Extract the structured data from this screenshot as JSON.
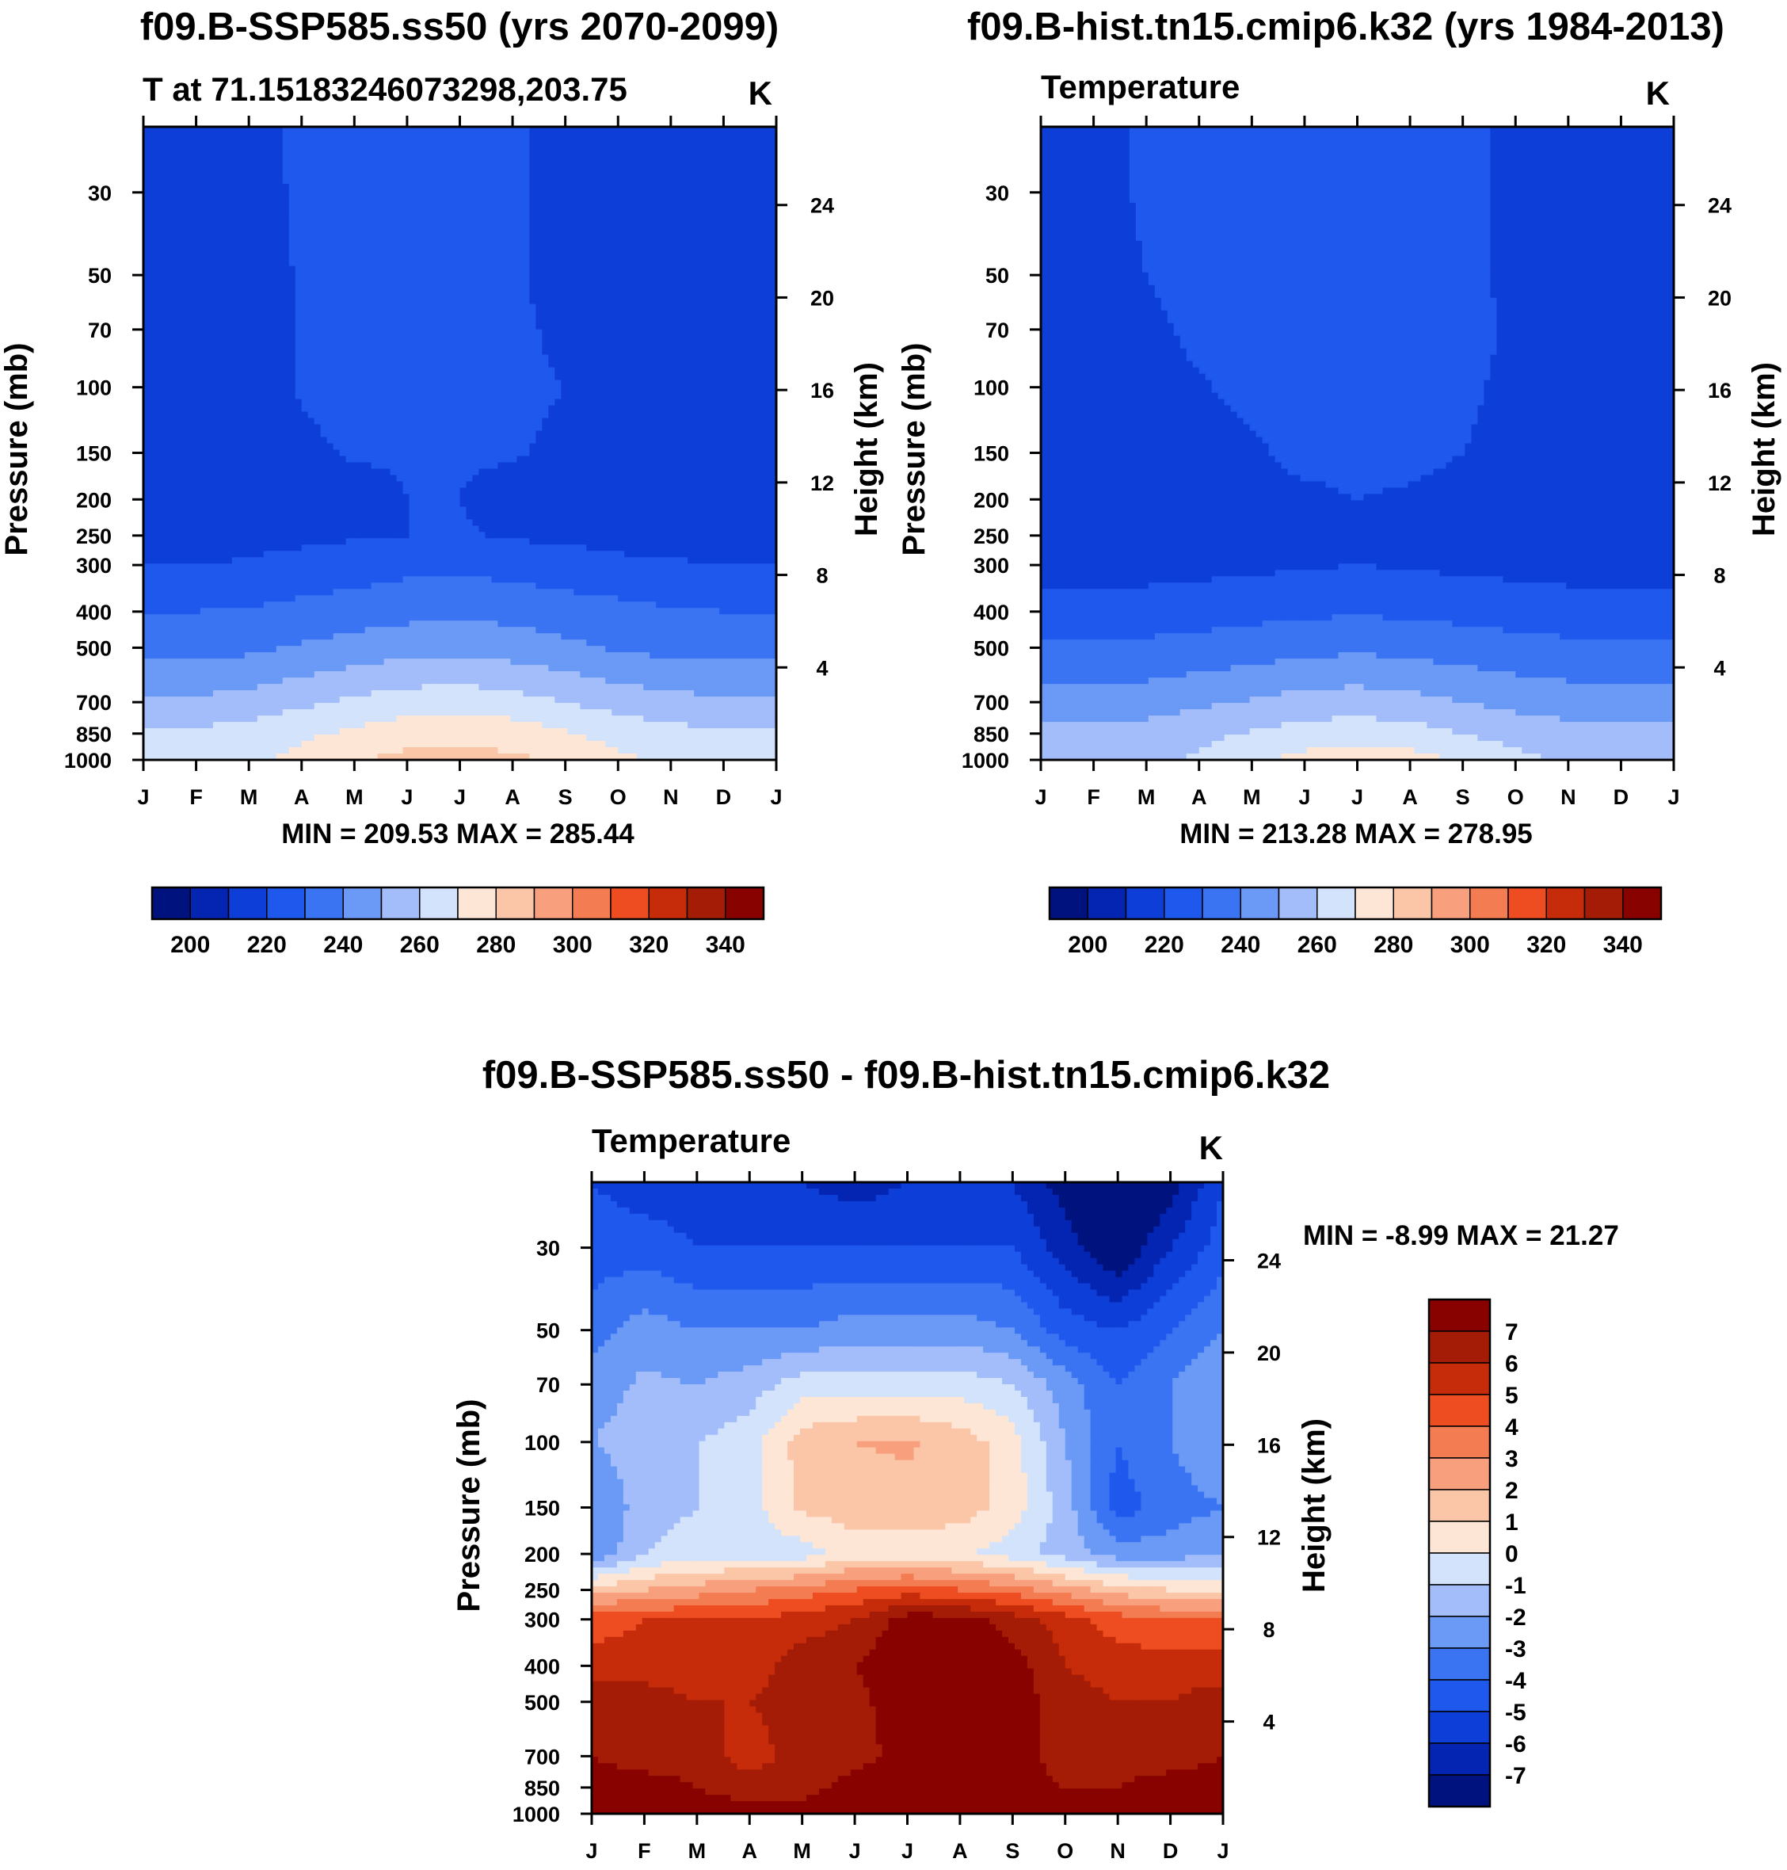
{
  "colors": {
    "levels": [
      "#00127d",
      "#0424b2",
      "#0d3fd8",
      "#1f58ec",
      "#3b74f2",
      "#6a9af6",
      "#a3bdfa",
      "#d2e3fb",
      "#fde6d6",
      "#fbc6a7",
      "#f8a07e",
      "#f47c52",
      "#ed4d21",
      "#c62b0a",
      "#a41c06",
      "#880200"
    ]
  },
  "chart_data": [
    {
      "id": "top-left",
      "type": "contour",
      "title": "f09.B-SSP585.ss50 (yrs 2070-2099)",
      "left_title": "T at 71.15183246073298,203.75",
      "units": "K",
      "xlabel": "",
      "ylabel": "Pressure (mb)",
      "ylabel_right": "Height (km)",
      "months": [
        "J",
        "F",
        "M",
        "A",
        "M",
        "J",
        "J",
        "A",
        "S",
        "O",
        "N",
        "D",
        "J"
      ],
      "pressure_ticks": [
        30,
        50,
        70,
        100,
        150,
        200,
        250,
        300,
        400,
        500,
        700,
        850,
        1000
      ],
      "height_ticks": [
        24,
        20,
        16,
        12,
        8,
        4
      ],
      "ylim": [
        1000,
        20
      ],
      "pressure_levels": [
        20,
        30,
        50,
        70,
        100,
        150,
        200,
        250,
        300,
        400,
        500,
        700,
        850,
        1000
      ],
      "min": 209.53,
      "max": 285.44,
      "minmax_label": "MIN = 209.53 MAX = 285.44",
      "colorbar": {
        "orientation": "horizontal",
        "labels": [
          "200",
          "220",
          "240",
          "260",
          "280",
          "300",
          "320",
          "340"
        ],
        "boundaries": [
          190,
          200,
          210,
          220,
          230,
          240,
          250,
          260,
          270,
          280,
          290,
          300,
          310,
          320,
          330,
          340,
          350
        ]
      },
      "values": [
        [
          215,
          215,
          215,
          223,
          225,
          225,
          225,
          222,
          215,
          215,
          213,
          215,
          215
        ],
        [
          215,
          215,
          215,
          222,
          225,
          225,
          225,
          222,
          215,
          215,
          213,
          215,
          215
        ],
        [
          215,
          215,
          215,
          221,
          224,
          224,
          224,
          222,
          215,
          215,
          215,
          215,
          215
        ],
        [
          215,
          215,
          215,
          221,
          223,
          223,
          223,
          222,
          218,
          215,
          215,
          215,
          215
        ],
        [
          215,
          215,
          215,
          221,
          223,
          223,
          223,
          222,
          220,
          215,
          215,
          215,
          215
        ],
        [
          215,
          215,
          215,
          218,
          221,
          221,
          221,
          221,
          218,
          215,
          215,
          215,
          215
        ],
        [
          215,
          215,
          215,
          215,
          216,
          220,
          220,
          216,
          215,
          215,
          215,
          215,
          215
        ],
        [
          216,
          216,
          217,
          218,
          219,
          220,
          221,
          219,
          218,
          217,
          216,
          216,
          216
        ],
        [
          220,
          220,
          221,
          223,
          225,
          227,
          228,
          226,
          224,
          222,
          221,
          220,
          220
        ],
        [
          230,
          230,
          231,
          233,
          235,
          237,
          238,
          237,
          235,
          233,
          231,
          230,
          230
        ],
        [
          236,
          236,
          238,
          241,
          244,
          246,
          247,
          245,
          242,
          239,
          237,
          236,
          236
        ],
        [
          252,
          252,
          254,
          258,
          262,
          265,
          266,
          264,
          260,
          256,
          253,
          252,
          252
        ],
        [
          262,
          262,
          264,
          268,
          272,
          276,
          277,
          275,
          271,
          266,
          263,
          262,
          262
        ],
        [
          267,
          267,
          268,
          273,
          279,
          283,
          284,
          282,
          278,
          272,
          268,
          267,
          267
        ]
      ]
    },
    {
      "id": "top-right",
      "type": "contour",
      "title": "f09.B-hist.tn15.cmip6.k32 (yrs 1984-2013)",
      "left_title": "Temperature",
      "units": "K",
      "xlabel": "",
      "ylabel": "Pressure (mb)",
      "ylabel_right": "Height (km)",
      "months": [
        "J",
        "F",
        "M",
        "A",
        "M",
        "J",
        "J",
        "A",
        "S",
        "O",
        "N",
        "D",
        "J"
      ],
      "pressure_ticks": [
        30,
        50,
        70,
        100,
        150,
        200,
        250,
        300,
        400,
        500,
        700,
        850,
        1000
      ],
      "height_ticks": [
        24,
        20,
        16,
        12,
        8,
        4
      ],
      "ylim": [
        1000,
        20
      ],
      "pressure_levels": [
        20,
        30,
        50,
        70,
        100,
        150,
        200,
        250,
        300,
        400,
        500,
        700,
        850,
        1000
      ],
      "min": 213.28,
      "max": 278.95,
      "minmax_label": "MIN = 213.28 MAX = 278.95",
      "colorbar": {
        "orientation": "horizontal",
        "labels": [
          "200",
          "220",
          "240",
          "260",
          "280",
          "300",
          "320",
          "340"
        ],
        "boundaries": [
          190,
          200,
          210,
          220,
          230,
          240,
          250,
          260,
          270,
          280,
          290,
          300,
          310,
          320,
          330,
          340,
          350
        ]
      },
      "values": [
        [
          215,
          215,
          222,
          225,
          225,
          225,
          225,
          225,
          225,
          215,
          215,
          215,
          215
        ],
        [
          215,
          215,
          222,
          225,
          225,
          225,
          225,
          225,
          225,
          215,
          215,
          215,
          215
        ],
        [
          215,
          215,
          220,
          225,
          225,
          225,
          225,
          225,
          225,
          215,
          215,
          215,
          215
        ],
        [
          215,
          215,
          217,
          223,
          225,
          225,
          225,
          225,
          225,
          218,
          215,
          215,
          215
        ],
        [
          215,
          215,
          215,
          219,
          223,
          225,
          225,
          225,
          223,
          216,
          215,
          215,
          215
        ],
        [
          215,
          215,
          215,
          215,
          218,
          224,
          224,
          224,
          220,
          215,
          215,
          215,
          215
        ],
        [
          215,
          215,
          215,
          215,
          215,
          217,
          220,
          218,
          215,
          215,
          215,
          215,
          215
        ],
        [
          214,
          214,
          214,
          215,
          216,
          217,
          219,
          217,
          216,
          215,
          214,
          214,
          214
        ],
        [
          215,
          215,
          216,
          217,
          218,
          219,
          220,
          219,
          218,
          217,
          216,
          215,
          215
        ],
        [
          224,
          224,
          225,
          226,
          227,
          228,
          229,
          228,
          227,
          226,
          225,
          224,
          224
        ],
        [
          231,
          231,
          232,
          233,
          235,
          237,
          238,
          237,
          235,
          233,
          232,
          231,
          231
        ],
        [
          244,
          244,
          245,
          248,
          251,
          254,
          255,
          253,
          250,
          247,
          245,
          244,
          244
        ],
        [
          253,
          253,
          254,
          257,
          261,
          264,
          266,
          264,
          260,
          256,
          254,
          253,
          253
        ],
        [
          256,
          256,
          257,
          262,
          268,
          273,
          276,
          274,
          269,
          263,
          258,
          256,
          256
        ]
      ]
    },
    {
      "id": "bottom",
      "type": "contour",
      "title": "f09.B-SSP585.ss50 - f09.B-hist.tn15.cmip6.k32",
      "left_title": "Temperature",
      "units": "K",
      "xlabel": "",
      "ylabel": "Pressure (mb)",
      "ylabel_right": "Height (km)",
      "months": [
        "J",
        "F",
        "M",
        "A",
        "M",
        "J",
        "J",
        "A",
        "S",
        "O",
        "N",
        "D",
        "J"
      ],
      "pressure_ticks": [
        30,
        50,
        70,
        100,
        150,
        200,
        250,
        300,
        400,
        500,
        700,
        850,
        1000
      ],
      "height_ticks": [
        24,
        20,
        16,
        12,
        8,
        4
      ],
      "ylim": [
        1000,
        20
      ],
      "pressure_levels": [
        20,
        30,
        50,
        70,
        100,
        150,
        200,
        250,
        300,
        400,
        500,
        700,
        850,
        1000
      ],
      "min": -8.99,
      "max": 21.27,
      "minmax_label": "MIN =  -8.99 MAX =  21.27",
      "colorbar": {
        "orientation": "vertical",
        "labels": [
          "7",
          "6",
          "5",
          "4",
          "3",
          "2",
          "1",
          "0",
          "-1",
          "-2",
          "-3",
          "-4",
          "-5",
          "-6",
          "-7"
        ],
        "boundaries": [
          -8,
          -7,
          -6,
          -5,
          -4,
          -3,
          -2,
          -1,
          0,
          1,
          2,
          3,
          4,
          5,
          6,
          7,
          8
        ]
      },
      "values": [
        [
          -5.0,
          -5.5,
          -5.5,
          -6.0,
          -6.0,
          -6.5,
          -6.0,
          -5.5,
          -6.0,
          -7.5,
          -9.0,
          -7.5,
          -5.0
        ],
        [
          -4.5,
          -4.5,
          -5.0,
          -5.0,
          -5.0,
          -5.0,
          -5.0,
          -5.0,
          -5.0,
          -6.5,
          -8.0,
          -6.0,
          -4.5
        ],
        [
          -3.5,
          -2.5,
          -3.0,
          -3.0,
          -3.0,
          -2.5,
          -2.5,
          -2.5,
          -3.0,
          -4.5,
          -5.0,
          -4.0,
          -3.0
        ],
        [
          -2.5,
          -1.8,
          -2.0,
          -1.5,
          -0.5,
          -0.5,
          -0.5,
          -0.5,
          -1.0,
          -2.5,
          -4.0,
          -3.0,
          -2.0
        ],
        [
          -2.0,
          -1.5,
          -1.0,
          -0.5,
          1.5,
          2.0,
          2.2,
          1.5,
          0.5,
          -2.0,
          -4.0,
          -3.0,
          -2.0
        ],
        [
          -3.0,
          -1.5,
          -1.0,
          -0.5,
          1.2,
          1.5,
          1.5,
          1.5,
          0.5,
          -1.5,
          -4.5,
          -3.5,
          -3.0
        ],
        [
          -3.0,
          -1.0,
          -0.5,
          -0.5,
          -0.5,
          0.5,
          0.5,
          0.2,
          -0.5,
          -1.5,
          -2.5,
          -2.5,
          -2.0
        ],
        [
          1.5,
          2.0,
          2.5,
          3.0,
          3.5,
          4.0,
          4.5,
          4.0,
          3.5,
          2.5,
          1.5,
          1.0,
          1.0
        ],
        [
          4.5,
          5.0,
          5.0,
          5.0,
          5.5,
          6.0,
          7.5,
          7.5,
          6.5,
          5.5,
          4.5,
          4.0,
          4.0
        ],
        [
          5.5,
          5.5,
          5.5,
          5.5,
          6.5,
          7.0,
          8.0,
          8.0,
          7.5,
          6.0,
          5.5,
          5.5,
          5.5
        ],
        [
          6.5,
          6.5,
          6.0,
          6.0,
          6.5,
          6.5,
          8.0,
          8.0,
          7.5,
          6.5,
          6.0,
          6.0,
          6.5
        ],
        [
          7.0,
          6.5,
          6.5,
          5.5,
          6.5,
          6.5,
          7.5,
          8.0,
          7.5,
          6.5,
          6.5,
          6.5,
          7.0
        ],
        [
          7.5,
          7.5,
          7.0,
          6.5,
          6.5,
          7.5,
          8.0,
          8.0,
          7.5,
          7.0,
          7.0,
          7.5,
          7.5
        ],
        [
          8.0,
          8.0,
          7.5,
          7.5,
          7.5,
          8.0,
          8.0,
          8.0,
          8.0,
          8.0,
          8.0,
          8.0,
          8.0
        ]
      ]
    }
  ]
}
